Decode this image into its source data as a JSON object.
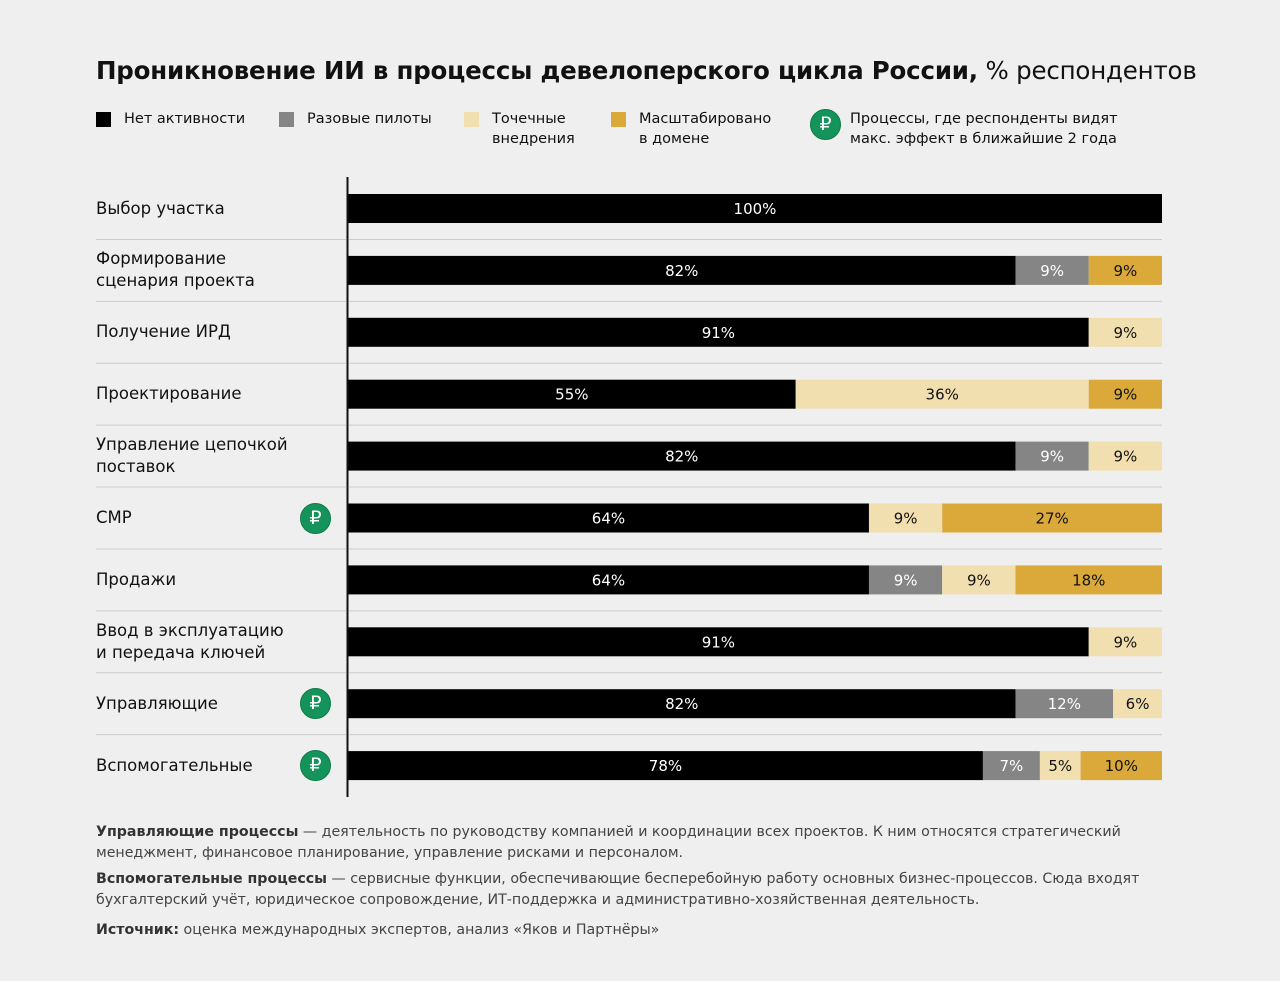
{
  "title": {
    "bold": "Проникновение ИИ в процессы девелоперского цикла России,",
    "light": " % респондентов"
  },
  "legend": {
    "items": [
      {
        "label": "Нет активности",
        "color": "#000000"
      },
      {
        "label": "Разовые пилоты",
        "color": "#858585"
      },
      {
        "label": "Точечные\nвнедрения",
        "color": "#f2dfb0"
      },
      {
        "label": "Масштабировано\nв домене",
        "color": "#dba83a"
      }
    ],
    "max_effect": {
      "icon": "ruble-icon",
      "glyph": "₽",
      "label": "Процессы, где респонденты видят\nмакс. эффект в ближайшие 2 года",
      "color": "#14935a"
    }
  },
  "chart_data": {
    "type": "bar",
    "orientation": "horizontal",
    "stacked": true,
    "xlim": [
      0,
      100
    ],
    "categories": [
      "Выбор участка",
      "Формирование сценария проекта",
      "Получение ИРД",
      "Проектирование",
      "Управление цепочкой поставок",
      "СМР",
      "Продажи",
      "Ввод в эксплуатацию и передача ключей",
      "Управляющие",
      "Вспомогательные"
    ],
    "category_labels": [
      "Выбор участка",
      "Формирование\nсценария проекта",
      "Получение ИРД",
      "Проектирование",
      "Управление цепочкой\nпоставок",
      "СМР",
      "Продажи",
      "Ввод в эксплуатацию\nи передача ключей",
      "Управляющие",
      "Вспомогательные"
    ],
    "max_effect_flags": [
      false,
      false,
      false,
      false,
      false,
      true,
      false,
      false,
      true,
      true
    ],
    "series": [
      {
        "name": "Нет активности",
        "color": "#000000",
        "values": [
          100,
          82,
          91,
          55,
          82,
          64,
          64,
          91,
          82,
          78
        ]
      },
      {
        "name": "Разовые пилоты",
        "color": "#858585",
        "values": [
          0,
          9,
          0,
          0,
          9,
          0,
          9,
          0,
          12,
          7
        ]
      },
      {
        "name": "Точечные внедрения",
        "color": "#f2dfb0",
        "values": [
          0,
          0,
          9,
          36,
          9,
          9,
          9,
          9,
          6,
          5
        ]
      },
      {
        "name": "Масштабировано в домене",
        "color": "#dba83a",
        "values": [
          0,
          9,
          0,
          9,
          0,
          27,
          18,
          0,
          0,
          10
        ]
      }
    ],
    "label_colors": [
      "#ffffff",
      "#ffffff",
      "#111111",
      "#111111"
    ]
  },
  "footnotes": [
    {
      "bold": "Управляющие процессы",
      "text": " — деятельность по руководству компанией и координации всех проектов. К ним относятся стратегический менеджмент, финансовое планирование, управление рисками и персоналом."
    },
    {
      "bold": "Вспомогательные процессы",
      "text": " — сервисные функции, обеспечивающие бесперебойную работу основных бизнес-процессов. Сюда входят бухгалтерский учёт, юридическое сопровождение, ИТ-поддержка и административно-хозяйственная деятельность."
    },
    {
      "bold": "Источник:",
      "text": " оценка международных экспертов, анализ «Яков и Партнёры»"
    }
  ]
}
